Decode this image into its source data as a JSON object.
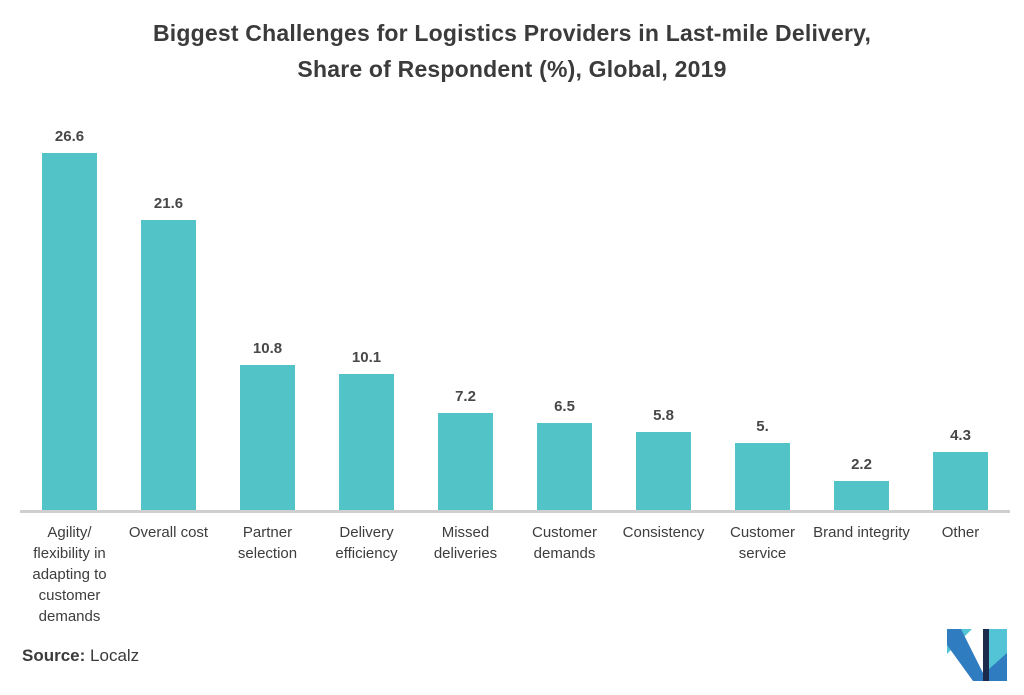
{
  "title": {
    "line1": "Biggest Challenges for Logistics Providers in Last-mile Delivery,",
    "line2": "Share of Respondent (%), Global, 2019"
  },
  "chart_data": {
    "type": "bar",
    "title": "Biggest Challenges for Logistics Providers in Last-mile Delivery, Share of Respondent (%), Global, 2019",
    "categories": [
      "Agility/ flexibility in adapting to customer demands",
      "Overall cost",
      "Partner selection",
      "Delivery efficiency",
      "Missed deliveries",
      "Customer demands",
      "Consistency",
      "Customer service",
      "Brand integrity",
      "Other"
    ],
    "values": [
      26.6,
      21.6,
      10.8,
      10.1,
      7.2,
      6.5,
      5.8,
      5.0,
      2.2,
      4.3
    ],
    "value_labels": [
      "26.6",
      "21.6",
      "10.8",
      "10.1",
      "7.2",
      "6.5",
      "5.8",
      "5.",
      "2.2",
      "4.3"
    ],
    "xlabel": "",
    "ylabel": "",
    "ylim": [
      0,
      27
    ],
    "grid": false,
    "legend": "none",
    "bar_color": "#52c4c8",
    "axis_line_color": "#cfcfcf"
  },
  "footer": {
    "source_label": "Source:",
    "source_value": "Localz"
  },
  "logo": {
    "name": "mordor-intelligence-logo",
    "navy": "#1c2b4b",
    "blue": "#2f7cc0",
    "teal": "#53c4d6"
  }
}
